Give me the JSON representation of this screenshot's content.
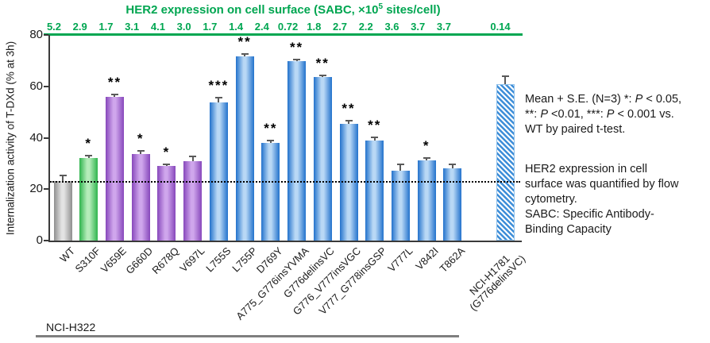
{
  "header": {
    "title_prefix": "HER2 expression on cell surface (SABC, ×10",
    "title_sup": "5",
    "title_suffix": " sites/cell)"
  },
  "chart_data": {
    "type": "bar",
    "title": "HER2 expression on cell surface (SABC, ×10^5 sites/cell)",
    "ylabel": "Internalization activity of T-DXd (% at 3h)",
    "ylim": [
      0,
      80
    ],
    "yticks": [
      0,
      20,
      40,
      60,
      80
    ],
    "reference_line_y": 23.2,
    "cell_line_label": "NCI-H322",
    "categories": [
      "WT",
      "S310F",
      "V659E",
      "G660D",
      "R678Q",
      "V697L",
      "L755S",
      "L755P",
      "D769Y",
      "A775_G776insYVMA",
      "G776delinsVC",
      "G776_V777insVGC",
      "V777_G778insGSP",
      "V777L",
      "V842I",
      "T862A",
      "NCI-H1781\n(G776delinsVC)"
    ],
    "values": [
      23.2,
      32.0,
      56.0,
      33.7,
      29.0,
      31.0,
      53.7,
      71.7,
      38.0,
      69.7,
      63.5,
      45.5,
      38.8,
      27.2,
      31.2,
      28.0,
      60.8
    ],
    "errors": [
      2.0,
      1.0,
      0.8,
      1.2,
      0.8,
      1.8,
      1.8,
      0.8,
      0.8,
      0.8,
      0.8,
      1.2,
      1.5,
      2.5,
      1.0,
      1.8,
      3.0
    ],
    "significance": [
      "",
      "*",
      "**",
      "*",
      "*",
      "",
      "***",
      "**",
      "**",
      "**",
      "**",
      "**",
      "**",
      "",
      "*",
      "",
      ""
    ],
    "sabc_values": [
      "5.2",
      "2.9",
      "1.7",
      "3.1",
      "4.1",
      "3.0",
      "1.7",
      "1.4",
      "2.4",
      "0.72",
      "1.8",
      "2.7",
      "2.2",
      "3.6",
      "3.7",
      "3.7",
      "0.14"
    ],
    "bar_styles": [
      "gray",
      "green",
      "purple",
      "purple",
      "purple",
      "purple",
      "blue",
      "blue",
      "blue",
      "blue",
      "blue",
      "blue",
      "blue",
      "blue",
      "blue",
      "blue",
      "hatched"
    ],
    "colors": {
      "green_text": "#00A651",
      "gray_edge": "#8f8f8f",
      "gray_light": "#e3e3e3",
      "green_edge": "#2eb44d",
      "green_light": "#b5ecba",
      "purple_edge": "#8747bb",
      "purple_light": "#cfa6ec",
      "blue_edge": "#2272cc",
      "blue_light": "#b9d8f5",
      "hatch_blue": "#3e8ed8"
    }
  },
  "annotations": {
    "stats": "Mean + S.E. (N=3) *: P < 0.05,\n**: P <0.01, ***: P < 0.001 vs.\nWT by paired t-test.",
    "method": "HER2 expression in cell\nsurface was quantified by flow\ncytometry.\nSABC: Specific Antibody-\nBinding Capacity"
  }
}
